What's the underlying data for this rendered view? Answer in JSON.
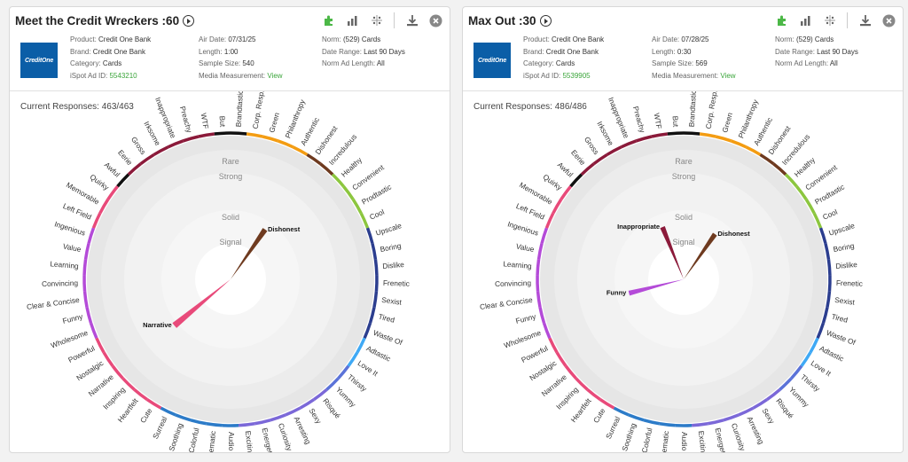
{
  "category_labels": [
    "Brandtastic",
    "Corp. Resp.",
    "Green",
    "Philanthropy",
    "Authentic",
    "Dishonest",
    "Incredulous",
    "Healthy",
    "Convenient",
    "Prodtastic",
    "Cool",
    "Upscale",
    "Boring",
    "Dislike",
    "Frenetic",
    "Sexist",
    "Tired",
    "Waste Of",
    "Adtastic",
    "Love It",
    "Thirsty",
    "Yummy",
    "Risqué",
    "Sexy",
    "Arresting",
    "Curiosity",
    "Energetic",
    "Exciting",
    "Audio",
    "Cinematic",
    "Colorful",
    "Soothing",
    "Surreal",
    "Cute",
    "Heartfelt",
    "Inspiring",
    "Narrative",
    "Nostalgic",
    "Powerful",
    "Wholesome",
    "Funny",
    "Clear & Concise",
    "Convincing",
    "Learning",
    "Value",
    "Ingenious",
    "Left Field",
    "Memorable",
    "Quirky",
    "Awful",
    "Eerie",
    "Gross",
    "Irksome",
    "Inappropriate",
    "Preachy",
    "WTF",
    "But"
  ],
  "ring_colors": [
    "#111111",
    "#f39c12",
    "#f39c12",
    "#f39c12",
    "#f39c12",
    "#6e3a1f",
    "#6e3a1f",
    "#8cc63f",
    "#8cc63f",
    "#8cc63f",
    "#8cc63f",
    "#2c3e8f",
    "#2c3e8f",
    "#2c3e8f",
    "#2c3e8f",
    "#2c3e8f",
    "#2c3e8f",
    "#2c3e8f",
    "#3fa9f5",
    "#3fa9f5",
    "#5b73d8",
    "#5b73d8",
    "#7b68d8",
    "#7b68d8",
    "#7b68d8",
    "#7b68d8",
    "#7b68d8",
    "#7b68d8",
    "#2c7bc8",
    "#2c7bc8",
    "#2c7bc8",
    "#2c7bc8",
    "#2c7bc8",
    "#e84a7a",
    "#e84a7a",
    "#e84a7a",
    "#e84a7a",
    "#e84a7a",
    "#e84a7a",
    "#b44bd8",
    "#b44bd8",
    "#b44bd8",
    "#b44bd8",
    "#b44bd8",
    "#b44bd8",
    "#b44bd8",
    "#e84a7a",
    "#e84a7a",
    "#e84a7a",
    "#111111",
    "#8b1a3a",
    "#8b1a3a",
    "#8b1a3a",
    "#8b1a3a",
    "#8b1a3a",
    "#8b1a3a",
    "#111111"
  ],
  "ring_labels": [
    "Rare",
    "Strong",
    "Solid",
    "Signal"
  ],
  "panels": [
    {
      "title": "Meet the Credit Wreckers :60",
      "logo_text": "CreditOne",
      "col1": [
        {
          "label": "Product:",
          "value": "Credit One Bank"
        },
        {
          "label": "Brand:",
          "value": "Credit One Bank"
        },
        {
          "label": "Category:",
          "value": "Cards"
        },
        {
          "label": "iSpot Ad ID:",
          "value": "5543210",
          "link": true
        }
      ],
      "col2": [
        {
          "label": "Air Date:",
          "value": "07/31/25"
        },
        {
          "label": "Length:",
          "value": "1:00"
        },
        {
          "label": "Sample Size:",
          "value": "540"
        },
        {
          "label": "Media Measurement:",
          "value": "View",
          "link": true
        }
      ],
      "col3": [
        {
          "label": "Norm:",
          "value": "(529) Cards"
        },
        {
          "label": "Date Range:",
          "value": "Last 90 Days"
        },
        {
          "label": "Norm Ad Length:",
          "value": "All"
        }
      ],
      "responses": "Current Responses: 463/463",
      "spikes": [
        {
          "label": "Dishonest",
          "index": 5,
          "length": 0.78,
          "color": "#6e3a1f"
        },
        {
          "label": "Narrative",
          "index": 36,
          "length": 0.95,
          "color": "#e84a7a"
        }
      ]
    },
    {
      "title": "Max Out :30",
      "logo_text": "CreditOne",
      "col1": [
        {
          "label": "Product:",
          "value": "Credit One Bank"
        },
        {
          "label": "Brand:",
          "value": "Credit One Bank"
        },
        {
          "label": "Category:",
          "value": "Cards"
        },
        {
          "label": "iSpot Ad ID:",
          "value": "5539905",
          "link": true
        }
      ],
      "col2": [
        {
          "label": "Air Date:",
          "value": "07/28/25"
        },
        {
          "label": "Length:",
          "value": "0:30"
        },
        {
          "label": "Sample Size:",
          "value": "569"
        },
        {
          "label": "Media Measurement:",
          "value": "View",
          "link": true
        }
      ],
      "col3": [
        {
          "label": "Norm:",
          "value": "(529) Cards"
        },
        {
          "label": "Date Range:",
          "value": "Last 90 Days"
        },
        {
          "label": "Norm Ad Length:",
          "value": "All"
        }
      ],
      "responses": "Current Responses: 486/486",
      "spikes": [
        {
          "label": "Inappropriate",
          "index": 53,
          "length": 0.72,
          "color": "#8b1a3a"
        },
        {
          "label": "Dishonest",
          "index": 5,
          "length": 0.7,
          "color": "#6e3a1f"
        },
        {
          "label": "Funny",
          "index": 40,
          "length": 0.72,
          "color": "#b44bd8"
        }
      ]
    }
  ]
}
